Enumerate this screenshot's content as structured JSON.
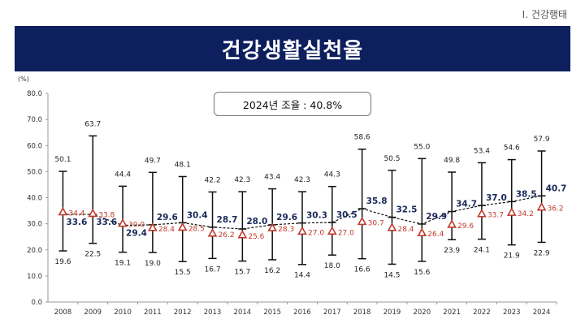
{
  "header": {
    "section": "Ⅰ. 건강행태",
    "title": "건강생활실천율"
  },
  "note": "2024년 조율 : 40.8%",
  "colors": {
    "band": "#0d1f5c",
    "overall": "#1a2a5a",
    "median": "#c0392b",
    "bar": "#111111"
  },
  "chart_data": {
    "type": "line",
    "ylabel": "(%)",
    "ylim": [
      0,
      80
    ],
    "yticks": [
      "0.0",
      "10.0",
      "20.0",
      "30.0",
      "40.0",
      "50.0",
      "60.0",
      "70.0",
      "80.0"
    ],
    "categories": [
      "2008",
      "2009",
      "2010",
      "2011",
      "2012",
      "2013",
      "2014",
      "2015",
      "2016",
      "2017",
      "2018",
      "2019",
      "2020",
      "2021",
      "2022",
      "2023",
      "2024"
    ],
    "overall": [
      33.6,
      33.6,
      29.4,
      29.6,
      30.4,
      28.7,
      28.0,
      29.6,
      30.3,
      30.5,
      35.8,
      32.5,
      29.9,
      34.7,
      37.0,
      38.5,
      40.7
    ],
    "median": [
      34.4,
      33.8,
      30.0,
      28.4,
      28.5,
      26.2,
      25.6,
      28.3,
      27.0,
      27.0,
      30.7,
      28.4,
      26.4,
      29.6,
      33.7,
      34.2,
      36.2
    ],
    "max": [
      50.1,
      63.7,
      44.4,
      49.7,
      48.1,
      42.2,
      42.3,
      43.4,
      42.3,
      44.3,
      58.6,
      50.5,
      55.0,
      49.8,
      53.4,
      54.6,
      57.9
    ],
    "min": [
      19.6,
      22.5,
      19.1,
      19.0,
      15.5,
      16.7,
      15.7,
      16.2,
      14.4,
      18.0,
      16.6,
      14.5,
      15.6,
      23.9,
      24.1,
      21.9,
      22.9
    ],
    "grid": false
  }
}
